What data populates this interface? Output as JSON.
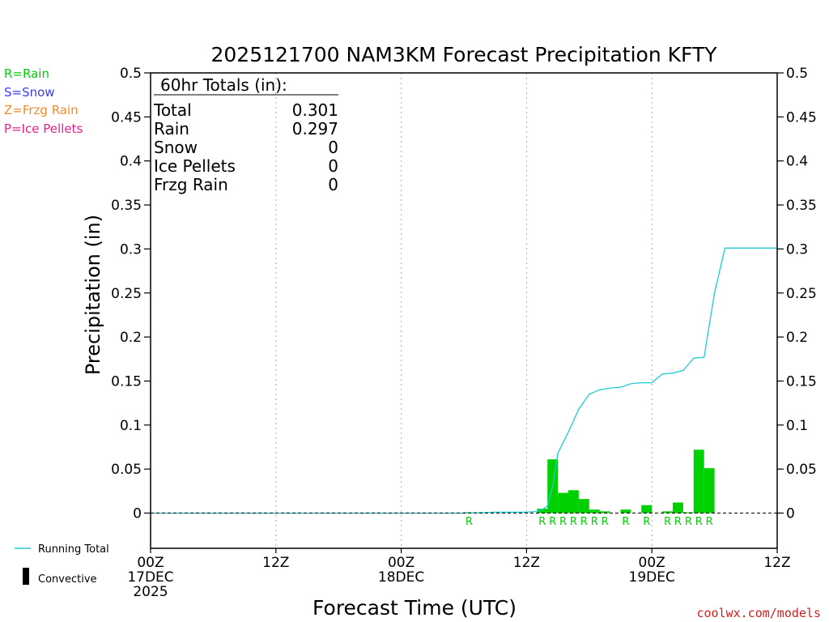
{
  "chart_data": {
    "type": "bar",
    "title": "2025121700 NAM3KM Forecast Precipitation KFTY",
    "xlabel": "Forecast Time (UTC)",
    "ylabel": "Precipitation (in)",
    "ylim": [
      -0.04,
      0.5
    ],
    "xlim": [
      0,
      60
    ],
    "yticks": [
      0,
      0.05,
      0.1,
      0.15,
      0.2,
      0.25,
      0.3,
      0.35,
      0.4,
      0.45,
      0.5
    ],
    "ytick_labels": [
      "0",
      "0.05",
      "0.1",
      "0.15",
      "0.2",
      "0.25",
      "0.3",
      "0.35",
      "0.4",
      "0.45",
      "0.5"
    ],
    "xticks": [
      {
        "hour": 0,
        "lines": [
          "00Z",
          "17DEC",
          "2025"
        ]
      },
      {
        "hour": 12,
        "lines": [
          "12Z"
        ]
      },
      {
        "hour": 24,
        "lines": [
          "00Z",
          "18DEC"
        ]
      },
      {
        "hour": 36,
        "lines": [
          "12Z"
        ]
      },
      {
        "hour": 48,
        "lines": [
          "00Z",
          "19DEC"
        ]
      },
      {
        "hour": 60,
        "lines": [
          "12Z"
        ]
      }
    ],
    "legend": {
      "placement": "left",
      "types": [
        {
          "label": "R=Rain",
          "color": "#00d000"
        },
        {
          "label": "S=Snow",
          "color": "#3b3bf0"
        },
        {
          "label": "Z=Frzg Rain",
          "color": "#f08c28"
        },
        {
          "label": "P=Ice Pellets",
          "color": "#e0208c"
        }
      ],
      "running_total_label": "Running Total",
      "convective_label": "Convective"
    },
    "totals": {
      "header": "60hr Totals (in):",
      "rows": [
        {
          "label": "Total",
          "value": "0.301"
        },
        {
          "label": "Rain",
          "value": "0.297"
        },
        {
          "label": "Snow",
          "value": "0"
        },
        {
          "label": "Ice Pellets",
          "value": "0"
        },
        {
          "label": "Frzg Rain",
          "value": "0"
        }
      ]
    },
    "bars": [
      {
        "hour": 31,
        "value": 0.001,
        "ptype": "R"
      },
      {
        "hour": 38,
        "value": 0.005,
        "ptype": "R"
      },
      {
        "hour": 39,
        "value": 0.061,
        "ptype": "R"
      },
      {
        "hour": 40,
        "value": 0.023,
        "ptype": "R"
      },
      {
        "hour": 41,
        "value": 0.026,
        "ptype": "R"
      },
      {
        "hour": 42,
        "value": 0.016,
        "ptype": "R"
      },
      {
        "hour": 43,
        "value": 0.004,
        "ptype": "R"
      },
      {
        "hour": 44,
        "value": 0.002,
        "ptype": "R"
      },
      {
        "hour": 46,
        "value": 0.004,
        "ptype": "R"
      },
      {
        "hour": 48,
        "value": 0.009,
        "ptype": "R"
      },
      {
        "hour": 50,
        "value": 0.002,
        "ptype": "R"
      },
      {
        "hour": 51,
        "value": 0.012,
        "ptype": "R"
      },
      {
        "hour": 52,
        "value": 0.001,
        "ptype": "R"
      },
      {
        "hour": 53,
        "value": 0.072,
        "ptype": "R"
      },
      {
        "hour": 54,
        "value": 0.051,
        "ptype": "R"
      }
    ],
    "running_total": {
      "x": [
        0,
        30,
        33,
        36,
        37,
        37.5,
        38,
        38.5,
        39,
        40,
        41,
        42,
        43,
        44,
        45,
        46,
        47,
        48,
        49,
        50,
        51,
        52,
        53,
        54,
        55,
        60
      ],
      "y": [
        0,
        0,
        0.001,
        0.001,
        0.002,
        0.004,
        0.008,
        0.03,
        0.068,
        0.092,
        0.118,
        0.135,
        0.14,
        0.142,
        0.143,
        0.147,
        0.148,
        0.148,
        0.158,
        0.159,
        0.162,
        0.176,
        0.177,
        0.25,
        0.301,
        0.301
      ]
    },
    "colors": {
      "rain": "#00d000",
      "running_total": "#1ecbd0",
      "axis": "#000000",
      "grid": "#aaaaaa",
      "credit": "#d02020"
    }
  },
  "credit": "coolwx.com/models"
}
